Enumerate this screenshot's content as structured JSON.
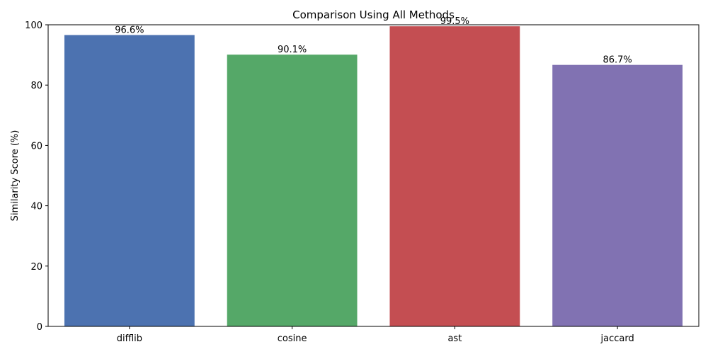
{
  "chart_data": {
    "type": "bar",
    "title": "Comparison Using All Methods",
    "xlabel": "",
    "ylabel": "Similarity Score (%)",
    "categories": [
      "difflib",
      "cosine",
      "ast",
      "jaccard"
    ],
    "values": [
      96.6,
      90.1,
      99.5,
      86.7
    ],
    "data_labels": [
      "96.6%",
      "90.1%",
      "99.5%",
      "86.7%"
    ],
    "colors": [
      "#4c72b0",
      "#55a868",
      "#c44e52",
      "#8172b2"
    ],
    "ylim": [
      0,
      100
    ],
    "yticks": [
      0,
      20,
      40,
      60,
      80,
      100
    ],
    "grid": false
  }
}
